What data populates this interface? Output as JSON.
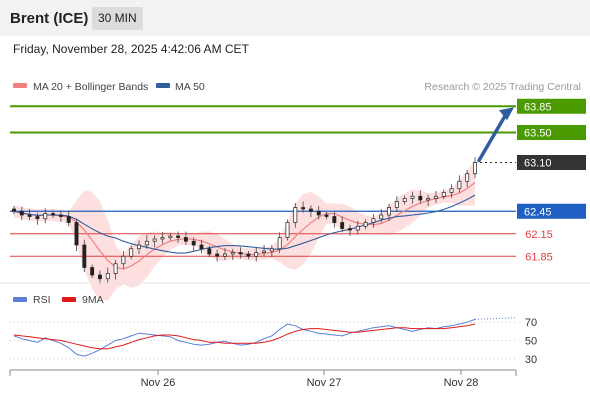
{
  "header": {
    "title": "Brent (ICE)",
    "timeframe": "30 MIN"
  },
  "timestamp": "Friday, November 28, 2025 4:42:06 AM CET",
  "legend": {
    "ma20": "MA 20 + Bollinger Bands",
    "ma50": "MA 50",
    "credit": "Research © 2025 Trading Central"
  },
  "colors": {
    "candle_up": "#2e7d32",
    "candle_down": "#c62828",
    "ma20": "#f08080",
    "ma50": "#2f5e9e",
    "bollinger_fill": "#fddcdc",
    "resistance": "#4a9a00",
    "pivot": "#1f5fc2",
    "support": "#e04040",
    "last_price": "#333333",
    "arrow": "#2f5e9e",
    "rsi": "#5b7fd6",
    "rsi_ma": "#e01818"
  },
  "chart_data": [
    {
      "type": "candlestick",
      "title": "Brent (ICE)",
      "timeframe": "30 MIN",
      "x_tick_labels": [
        "Nov 26",
        "Nov 27",
        "Nov 28"
      ],
      "ylim": [
        61.6,
        64.0
      ],
      "levels": [
        {
          "label": "63.85",
          "value": 63.85,
          "kind": "resistance"
        },
        {
          "label": "63.50",
          "value": 63.5,
          "kind": "resistance"
        },
        {
          "label": "63.10",
          "value": 63.1,
          "kind": "last"
        },
        {
          "label": "62.45",
          "value": 62.45,
          "kind": "pivot"
        },
        {
          "label": "62.15",
          "value": 62.15,
          "kind": "support"
        },
        {
          "label": "61.85",
          "value": 61.85,
          "kind": "support"
        }
      ],
      "arrow": {
        "from": 63.1,
        "to": 63.85,
        "direction": "up"
      },
      "series": [
        {
          "name": "MA 20 + Bollinger Bands",
          "style": "line+band"
        },
        {
          "name": "MA 50",
          "style": "line"
        }
      ],
      "close_path": [
        62.45,
        62.4,
        62.38,
        62.35,
        62.42,
        62.4,
        62.38,
        62.3,
        62.0,
        61.7,
        61.6,
        61.55,
        61.62,
        61.75,
        61.85,
        61.95,
        62.0,
        62.05,
        62.08,
        62.1,
        62.12,
        62.1,
        62.05,
        62.0,
        61.95,
        61.88,
        61.85,
        61.88,
        61.9,
        61.88,
        61.85,
        61.9,
        61.92,
        61.95,
        62.1,
        62.3,
        62.5,
        62.48,
        62.45,
        62.4,
        62.38,
        62.3,
        62.22,
        62.2,
        62.25,
        62.3,
        62.35,
        62.4,
        62.5,
        62.58,
        62.62,
        62.65,
        62.6,
        62.62,
        62.65,
        62.7,
        62.75,
        62.85,
        62.95,
        63.1
      ]
    },
    {
      "type": "line",
      "title": "RSI",
      "x_tick_labels": [
        "Nov 26",
        "Nov 27",
        "Nov 28"
      ],
      "ylim": [
        20,
        80
      ],
      "yticks": [
        "70",
        "50",
        "30"
      ],
      "series": [
        {
          "name": "RSI",
          "values": [
            55,
            52,
            50,
            48,
            53,
            50,
            47,
            42,
            35,
            33,
            36,
            40,
            45,
            50,
            52,
            55,
            58,
            57,
            56,
            55,
            54,
            50,
            48,
            46,
            45,
            46,
            48,
            49,
            47,
            45,
            46,
            48,
            52,
            55,
            62,
            68,
            66,
            62,
            60,
            58,
            57,
            56,
            55,
            58,
            60,
            62,
            64,
            65,
            66,
            64,
            62,
            60,
            62,
            64,
            63,
            65,
            66,
            68,
            70,
            73
          ]
        },
        {
          "name": "9MA",
          "values": [
            56,
            55,
            54,
            53,
            52,
            51,
            50,
            48,
            46,
            44,
            42,
            41,
            41,
            43,
            45,
            48,
            51,
            53,
            55,
            56,
            56,
            55,
            53,
            51,
            50,
            48,
            48,
            47,
            47,
            47,
            47,
            47,
            48,
            50,
            53,
            57,
            60,
            62,
            63,
            63,
            62,
            61,
            60,
            59,
            59,
            60,
            61,
            62,
            63,
            64,
            64,
            63,
            63,
            63,
            63,
            63,
            64,
            65,
            66,
            68
          ]
        }
      ]
    }
  ]
}
